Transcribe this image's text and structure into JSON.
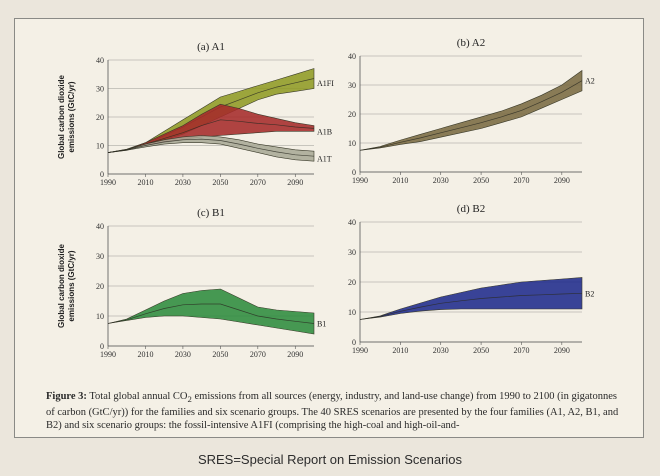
{
  "chart_data": [
    {
      "type": "area",
      "title": "(a) A1",
      "ylabel": "Global carbon dioxide emissions (GtC/yr)",
      "xlabel": "",
      "x_ticks": [
        1990,
        2010,
        2030,
        2050,
        2070,
        2090
      ],
      "y_ticks": [
        0,
        10,
        20,
        30,
        40
      ],
      "xlim": [
        1990,
        2100
      ],
      "ylim": [
        0,
        40
      ],
      "grid": "horizontal",
      "series": [
        {
          "name": "A1FI",
          "color": "#8f9a24",
          "x": [
            1990,
            2000,
            2010,
            2020,
            2030,
            2040,
            2050,
            2060,
            2070,
            2080,
            2090,
            2100
          ],
          "lower": [
            7.5,
            8.5,
            10,
            12,
            14,
            17,
            20,
            23,
            26,
            28,
            29,
            30
          ],
          "upper": [
            7.5,
            8.7,
            11,
            15,
            19,
            23,
            27,
            29,
            31,
            33,
            35,
            37
          ]
        },
        {
          "name": "A1B",
          "color": "#a52a2a",
          "x": [
            1990,
            2000,
            2010,
            2020,
            2030,
            2040,
            2050,
            2060,
            2070,
            2080,
            2090,
            2100
          ],
          "lower": [
            7.5,
            8.5,
            10,
            11,
            12,
            13,
            13.5,
            14,
            14.5,
            15,
            15,
            15
          ],
          "upper": [
            7.5,
            8.6,
            11,
            14,
            17,
            21,
            24.5,
            23,
            21,
            19.5,
            18,
            17
          ]
        },
        {
          "name": "A1T",
          "color": "#a8a896",
          "x": [
            1990,
            2000,
            2010,
            2020,
            2030,
            2040,
            2050,
            2060,
            2070,
            2080,
            2090,
            2100
          ],
          "lower": [
            7.5,
            8.3,
            9.5,
            10.5,
            11,
            11,
            10.5,
            9,
            7.5,
            6,
            5,
            4.5
          ],
          "upper": [
            7.5,
            8.5,
            10.5,
            12,
            13,
            13.5,
            13,
            12,
            10.5,
            9.5,
            8.5,
            8
          ]
        }
      ],
      "line_labels": [
        "A1FI",
        "A1B",
        "A1T"
      ]
    },
    {
      "type": "area",
      "title": "(b) A2",
      "ylabel": "",
      "xlabel": "",
      "x_ticks": [
        1990,
        2010,
        2030,
        2050,
        2070,
        2090
      ],
      "y_ticks": [
        0,
        10,
        20,
        30,
        40
      ],
      "xlim": [
        1990,
        2100
      ],
      "ylim": [
        0,
        40
      ],
      "grid": "horizontal",
      "series": [
        {
          "name": "A2",
          "color": "#7a6a42",
          "x": [
            1990,
            2000,
            2010,
            2020,
            2030,
            2040,
            2050,
            2060,
            2070,
            2080,
            2090,
            2100
          ],
          "lower": [
            7.5,
            8.3,
            9.5,
            10.5,
            12,
            13.5,
            15,
            17,
            19,
            22,
            25,
            28
          ],
          "upper": [
            7.5,
            8.8,
            11,
            13,
            15,
            17,
            19,
            21,
            23.5,
            26.5,
            30,
            35
          ]
        }
      ],
      "line_labels": [
        "A2"
      ]
    },
    {
      "type": "area",
      "title": "(c) B1",
      "ylabel": "Global carbon dioxide emissions (GtC/yr)",
      "xlabel": "",
      "x_ticks": [
        1990,
        2010,
        2030,
        2050,
        2070,
        2090
      ],
      "y_ticks": [
        0,
        10,
        20,
        30,
        40
      ],
      "xlim": [
        1990,
        2100
      ],
      "ylim": [
        0,
        40
      ],
      "grid": "horizontal",
      "series": [
        {
          "name": "B1",
          "color": "#2e8b3e",
          "x": [
            1990,
            2000,
            2010,
            2020,
            2030,
            2040,
            2050,
            2060,
            2070,
            2080,
            2090,
            2100
          ],
          "lower": [
            7.5,
            8.5,
            9.5,
            10,
            10,
            9.5,
            9,
            8,
            7,
            6,
            5,
            4
          ],
          "upper": [
            7.5,
            9,
            12,
            15,
            17.5,
            18.5,
            19,
            16,
            13,
            12,
            11.5,
            11
          ]
        }
      ],
      "median": [
        7.5,
        8.7,
        10,
        11,
        11.5,
        11.5,
        11.5,
        10.5,
        9,
        7.5,
        6,
        5
      ],
      "line_labels": [
        "B1"
      ]
    },
    {
      "type": "area",
      "title": "(d) B2",
      "ylabel": "",
      "xlabel": "",
      "x_ticks": [
        1990,
        2010,
        2030,
        2050,
        2070,
        2090
      ],
      "y_ticks": [
        0,
        10,
        20,
        30,
        40
      ],
      "xlim": [
        1990,
        2100
      ],
      "ylim": [
        0,
        40
      ],
      "grid": "horizontal",
      "series": [
        {
          "name": "B2",
          "color": "#1f2a8c",
          "x": [
            1990,
            2000,
            2010,
            2020,
            2030,
            2040,
            2050,
            2060,
            2070,
            2080,
            2090,
            2100
          ],
          "lower": [
            7.5,
            8.3,
            9.5,
            10.3,
            10.8,
            11,
            11,
            11,
            11,
            11,
            11,
            11
          ],
          "upper": [
            7.5,
            8.7,
            11,
            13,
            15,
            16.5,
            18,
            19,
            20,
            20.5,
            21,
            21.5
          ]
        }
      ],
      "line_labels": [
        "B2"
      ]
    }
  ],
  "caption": {
    "label": "Figure 3:",
    "text_1": " Total global annual CO",
    "sub": "2",
    "text_2": " emissions from all sources (energy, industry, and land-use change) from 1990 to 2100 (in gigatonnes of carbon (GtC/yr)) for the families and six scenario groups. The 40 SRES scenarios are presented by the four families (A1, A2, B1, and B2) and six scenario groups: the fossil-intensive A1FI (comprising the high-coal and high-oil-and-"
  },
  "footer": "SRES=Special Report on Emission Scenarios"
}
